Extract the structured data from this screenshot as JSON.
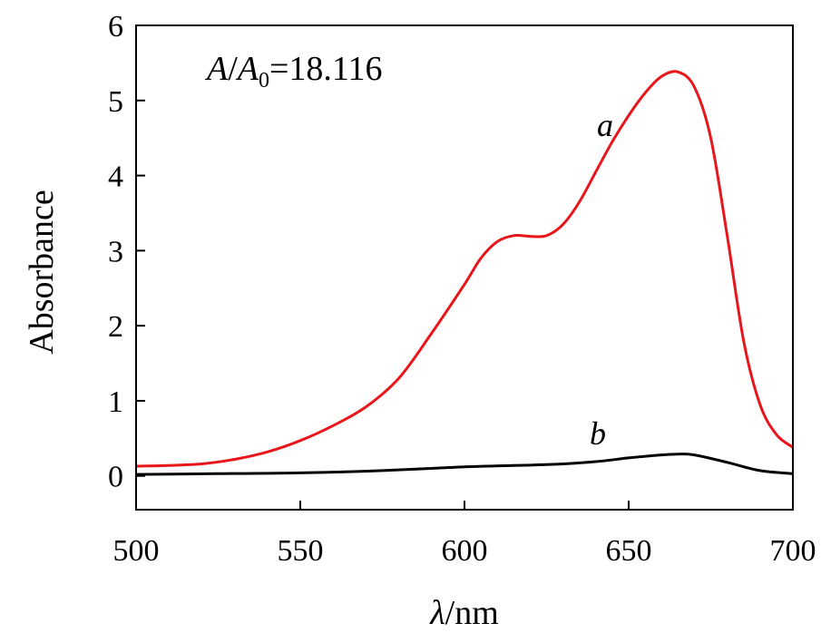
{
  "chart_data": {
    "type": "line",
    "xlabel": {
      "symbol": "λ",
      "unit": "/nm"
    },
    "ylabel": "Absorbance",
    "xlim": [
      500,
      700
    ],
    "ylim": [
      -0.45,
      6
    ],
    "xticks": [
      500,
      550,
      600,
      650,
      700
    ],
    "yticks": [
      0,
      1,
      2,
      3,
      4,
      5,
      6
    ],
    "grid": false,
    "annotation": {
      "symbol_a": "A",
      "slash": "/",
      "symbol_b": "A",
      "subscript": "0",
      "value": "=18.116"
    },
    "series": [
      {
        "name": "a",
        "color": "#e8161b",
        "x": [
          500,
          510,
          520,
          530,
          540,
          550,
          560,
          570,
          580,
          590,
          600,
          605,
          610,
          615,
          620,
          625,
          630,
          635,
          640,
          645,
          650,
          655,
          660,
          665,
          670,
          675,
          680,
          685,
          690,
          695,
          700
        ],
        "y": [
          0.13,
          0.14,
          0.16,
          0.22,
          0.32,
          0.47,
          0.67,
          0.92,
          1.3,
          1.9,
          2.55,
          2.9,
          3.12,
          3.2,
          3.19,
          3.2,
          3.35,
          3.65,
          4.05,
          4.45,
          4.8,
          5.1,
          5.32,
          5.38,
          5.18,
          4.5,
          3.2,
          1.8,
          0.95,
          0.55,
          0.38
        ]
      },
      {
        "name": "b",
        "color": "#000000",
        "x": [
          500,
          525,
          550,
          575,
          600,
          625,
          640,
          650,
          660,
          665,
          670,
          680,
          690,
          700
        ],
        "y": [
          0.02,
          0.03,
          0.04,
          0.07,
          0.12,
          0.15,
          0.19,
          0.24,
          0.28,
          0.29,
          0.28,
          0.18,
          0.07,
          0.03
        ]
      }
    ]
  }
}
